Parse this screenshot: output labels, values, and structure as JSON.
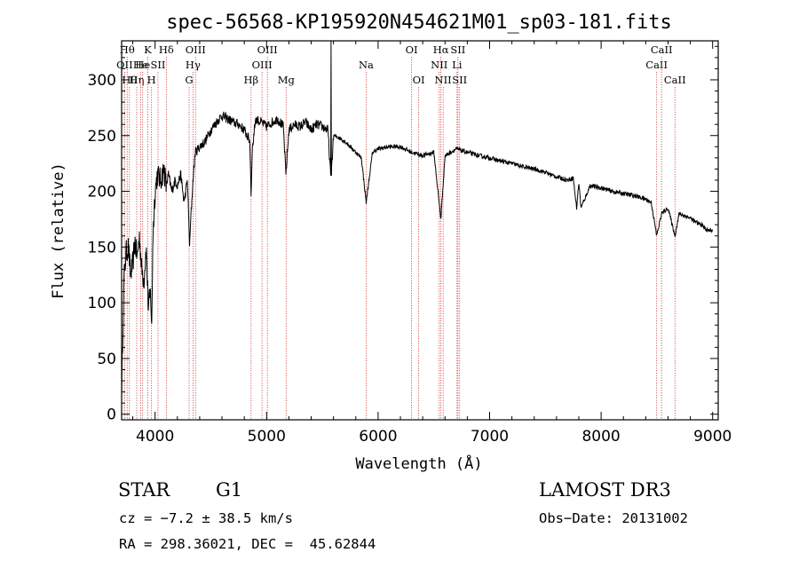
{
  "chart_data": {
    "type": "line",
    "title": "spec-56568-KP195920N454621M01_sp03-181.fits",
    "xlabel": "Wavelength (Å)",
    "ylabel": "Flux (relative)",
    "xlim": [
      3700,
      9050
    ],
    "ylim": [
      -5,
      335
    ],
    "xticks": [
      4000,
      5000,
      6000,
      7000,
      8000,
      9000
    ],
    "xtick_labels": [
      "4000",
      "5000",
      "6000",
      "7000",
      "8000",
      "9000"
    ],
    "yticks": [
      0,
      50,
      100,
      150,
      200,
      250,
      300
    ],
    "ytick_labels": [
      "0",
      "50",
      "100",
      "150",
      "200",
      "250",
      "300"
    ],
    "grid": false,
    "series": [
      {
        "name": "flux",
        "x": [
          3700,
          3720,
          3740,
          3760,
          3780,
          3800,
          3820,
          3840,
          3860,
          3880,
          3900,
          3920,
          3940,
          3960,
          3970,
          3980,
          4000,
          4020,
          4050,
          4080,
          4100,
          4120,
          4150,
          4180,
          4200,
          4230,
          4260,
          4290,
          4300,
          4310,
          4320,
          4340,
          4360,
          4400,
          4450,
          4500,
          4550,
          4600,
          4650,
          4700,
          4750,
          4800,
          4850,
          4861,
          4870,
          4900,
          4950,
          5000,
          5050,
          5100,
          5150,
          5173,
          5200,
          5250,
          5300,
          5350,
          5400,
          5450,
          5500,
          5550,
          5577,
          5600,
          5650,
          5700,
          5750,
          5800,
          5850,
          5893,
          5950,
          6000,
          6100,
          6200,
          6300,
          6400,
          6500,
          6563,
          6600,
          6700,
          6800,
          6900,
          7000,
          7100,
          7200,
          7300,
          7400,
          7500,
          7600,
          7700,
          7750,
          7780,
          7800,
          7820,
          7900,
          8000,
          8100,
          8200,
          8300,
          8400,
          8450,
          8498,
          8542,
          8600,
          8662,
          8700,
          8800,
          8850,
          8900,
          8950,
          9000
        ],
        "y": [
          20,
          120,
          145,
          150,
          125,
          135,
          155,
          140,
          160,
          130,
          120,
          150,
          95,
          110,
          75,
          160,
          200,
          215,
          210,
          220,
          205,
          215,
          200,
          210,
          205,
          215,
          190,
          210,
          180,
          150,
          175,
          210,
          235,
          240,
          245,
          255,
          262,
          268,
          265,
          262,
          260,
          255,
          245,
          195,
          235,
          265,
          262,
          258,
          262,
          265,
          258,
          215,
          255,
          260,
          258,
          262,
          255,
          260,
          258,
          255,
          210,
          250,
          248,
          245,
          240,
          235,
          230,
          190,
          235,
          238,
          240,
          240,
          235,
          232,
          235,
          175,
          232,
          238,
          235,
          232,
          230,
          227,
          225,
          222,
          220,
          217,
          213,
          210,
          212,
          185,
          208,
          185,
          205,
          203,
          200,
          198,
          196,
          193,
          190,
          160,
          180,
          185,
          160,
          180,
          176,
          172,
          170,
          165,
          165
        ]
      }
    ],
    "spike": {
      "x": 5577,
      "y": 335
    },
    "spectral_lines": [
      {
        "x": 3750,
        "label": "Hθ",
        "row": 0
      },
      {
        "x": 3727,
        "label": "OII",
        "row": 1
      },
      {
        "x": 3770,
        "label": "Hθ",
        "row": 2
      },
      {
        "x": 3835,
        "label": "Hη",
        "row": 2
      },
      {
        "x": 3870,
        "label": "He",
        "row": 1
      },
      {
        "x": 3889,
        "label": "He",
        "row": 1
      },
      {
        "x": 3934,
        "label": "K",
        "row": 0
      },
      {
        "x": 3968,
        "label": "H",
        "row": 2
      },
      {
        "x": 4026,
        "label": "SII",
        "row": 1
      },
      {
        "x": 4101,
        "label": "Hδ",
        "row": 0
      },
      {
        "x": 4305,
        "label": "G",
        "row": 2
      },
      {
        "x": 4340,
        "label": "Hγ",
        "row": 1
      },
      {
        "x": 4363,
        "label": "OIII",
        "row": 0
      },
      {
        "x": 4861,
        "label": "Hβ",
        "row": 2
      },
      {
        "x": 4959,
        "label": "OIII",
        "row": 1
      },
      {
        "x": 5007,
        "label": "OIII",
        "row": 0
      },
      {
        "x": 5175,
        "label": "Mg",
        "row": 2
      },
      {
        "x": 5893,
        "label": "Na",
        "row": 1
      },
      {
        "x": 6300,
        "label": "OI",
        "row": 0
      },
      {
        "x": 6364,
        "label": "OI",
        "row": 2
      },
      {
        "x": 6548,
        "label": "NII",
        "row": 1
      },
      {
        "x": 6563,
        "label": "Hα",
        "row": 0
      },
      {
        "x": 6583,
        "label": "NII",
        "row": 2
      },
      {
        "x": 6708,
        "label": "Li",
        "row": 1
      },
      {
        "x": 6716,
        "label": "SII",
        "row": 0
      },
      {
        "x": 6731,
        "label": "SII",
        "row": 2
      },
      {
        "x": 8498,
        "label": "CaII",
        "row": 1
      },
      {
        "x": 8542,
        "label": "CaII",
        "row": 0
      },
      {
        "x": 8662,
        "label": "CaII",
        "row": 2
      }
    ],
    "colors": {
      "spectrum": "#000000",
      "marker_lines": "#cc3333",
      "axes": "#000000"
    }
  },
  "info": {
    "object_class": "STAR",
    "subclass": "G1",
    "survey": "LAMOST DR3",
    "cz": "cz = −7.2 ± 38.5 km/s",
    "obs_date": "Obs−Date: 20131002",
    "coords": "RA = 298.36021, DEC =  45.62844"
  }
}
